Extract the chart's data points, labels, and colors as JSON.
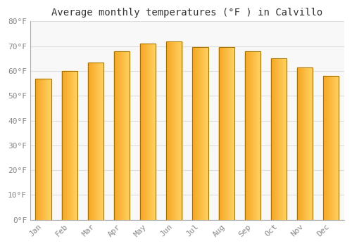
{
  "title": "Average monthly temperatures (°F ) in Calvillo",
  "months": [
    "Jan",
    "Feb",
    "Mar",
    "Apr",
    "May",
    "Jun",
    "Jul",
    "Aug",
    "Sep",
    "Oct",
    "Nov",
    "Dec"
  ],
  "values": [
    57,
    60,
    63.5,
    68,
    71,
    72,
    69.5,
    69.5,
    68,
    65,
    61.5,
    58
  ],
  "bar_color_left": "#F5A623",
  "bar_color_right": "#FFD060",
  "bar_edge_color": "#A07000",
  "background_color": "#FFFFFF",
  "plot_bg_color": "#F8F8F8",
  "grid_color": "#DDDDDD",
  "ylim": [
    0,
    80
  ],
  "yticks": [
    0,
    10,
    20,
    30,
    40,
    50,
    60,
    70,
    80
  ],
  "ytick_labels": [
    "0°F",
    "10°F",
    "20°F",
    "30°F",
    "40°F",
    "50°F",
    "60°F",
    "70°F",
    "80°F"
  ],
  "title_fontsize": 10,
  "tick_fontsize": 8,
  "tick_color": "#888888",
  "font_family": "monospace",
  "bar_width": 0.6
}
